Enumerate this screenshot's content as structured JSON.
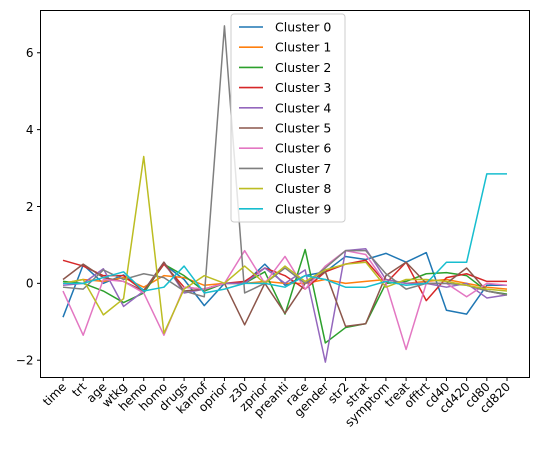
{
  "chart_data": {
    "type": "line",
    "categories": [
      "time",
      "trt",
      "age",
      "wtkg",
      "hemo",
      "homo",
      "drugs",
      "karnof",
      "oprior",
      "z30",
      "zprior",
      "preanti",
      "race",
      "gender",
      "str2",
      "strat",
      "symptom",
      "treat",
      "offtrt",
      "cd40",
      "cd420",
      "cd80",
      "cd820"
    ],
    "yticks": [
      -2,
      0,
      2,
      4,
      6
    ],
    "ylim": [
      -2.45,
      7.1
    ],
    "grid": false,
    "legend_position": "top-center",
    "series": [
      {
        "name": "Cluster 0",
        "color": "#1f77b4",
        "values": [
          -0.88,
          0.48,
          0.0,
          0.22,
          -0.18,
          0.5,
          0.1,
          -0.58,
          0.0,
          0.0,
          0.5,
          -0.05,
          0.2,
          0.3,
          0.7,
          0.62,
          0.78,
          0.55,
          0.8,
          -0.7,
          -0.8,
          -0.05,
          -0.05
        ]
      },
      {
        "name": "Cluster 1",
        "color": "#ff7f0e",
        "values": [
          0.0,
          0.1,
          0.05,
          0.15,
          -0.1,
          0.2,
          0.15,
          -0.05,
          0.0,
          0.0,
          0.05,
          0.0,
          0.0,
          0.1,
          0.0,
          0.05,
          0.1,
          0.0,
          0.05,
          0.1,
          0.0,
          -0.1,
          -0.15
        ]
      },
      {
        "name": "Cluster 2",
        "color": "#2ca02c",
        "values": [
          0.05,
          0.0,
          -0.2,
          -0.5,
          -0.25,
          0.5,
          0.2,
          -0.2,
          0.0,
          0.0,
          0.3,
          -0.8,
          0.88,
          -1.55,
          -1.15,
          -1.05,
          0.0,
          0.05,
          0.25,
          0.28,
          0.2,
          -0.2,
          -0.28
        ]
      },
      {
        "name": "Cluster 3",
        "color": "#d62728",
        "values": [
          0.6,
          0.45,
          0.2,
          0.2,
          -0.2,
          0.5,
          -0.1,
          -0.15,
          0.0,
          0.05,
          0.4,
          0.2,
          -0.15,
          0.3,
          0.5,
          0.6,
          0.0,
          0.55,
          -0.45,
          0.15,
          0.25,
          0.05,
          0.05
        ]
      },
      {
        "name": "Cluster 4",
        "color": "#9467bd",
        "values": [
          -0.05,
          0.0,
          0.38,
          -0.6,
          -0.2,
          0.55,
          -0.25,
          -0.15,
          0.0,
          0.0,
          0.4,
          0.0,
          0.35,
          -2.05,
          0.85,
          0.9,
          0.1,
          0.0,
          0.0,
          -0.1,
          0.0,
          -0.38,
          -0.3
        ]
      },
      {
        "name": "Cluster 5",
        "color": "#8c564b",
        "values": [
          0.1,
          0.5,
          0.15,
          0.05,
          -0.2,
          0.55,
          -0.2,
          -0.15,
          0.0,
          -1.08,
          0.0,
          -0.78,
          0.0,
          0.3,
          -1.12,
          -1.05,
          0.2,
          0.55,
          0.0,
          0.0,
          0.4,
          -0.2,
          -0.3
        ]
      },
      {
        "name": "Cluster 6",
        "color": "#e377c2",
        "values": [
          -0.2,
          -1.35,
          0.1,
          0.05,
          -0.25,
          -1.35,
          -0.1,
          -0.15,
          0.0,
          0.85,
          0.0,
          0.7,
          -0.15,
          0.45,
          0.85,
          0.75,
          0.0,
          -1.72,
          0.0,
          0.0,
          -0.35,
          0.0,
          -0.05
        ]
      },
      {
        "name": "Cluster 7",
        "color": "#7f7f7f",
        "values": [
          -0.1,
          -0.15,
          0.35,
          0.1,
          0.25,
          0.15,
          -0.2,
          -0.35,
          6.7,
          -0.25,
          0.0,
          0.4,
          0.0,
          0.4,
          0.85,
          0.85,
          0.25,
          -0.15,
          0.0,
          0.0,
          -0.05,
          -0.2,
          -0.3
        ]
      },
      {
        "name": "Cluster 8",
        "color": "#bcbd22",
        "values": [
          0.0,
          0.1,
          -0.82,
          -0.4,
          3.3,
          -1.3,
          -0.15,
          0.2,
          0.0,
          0.45,
          0.0,
          0.45,
          0.05,
          0.35,
          0.5,
          0.55,
          -0.1,
          0.1,
          0.1,
          0.05,
          -0.05,
          -0.15,
          -0.2
        ]
      },
      {
        "name": "Cluster 9",
        "color": "#17becf",
        "values": [
          0.0,
          0.0,
          0.15,
          0.3,
          -0.2,
          -0.1,
          0.45,
          -0.25,
          -0.15,
          0.0,
          0.0,
          -0.1,
          0.2,
          0.1,
          -0.1,
          -0.1,
          0.05,
          -0.05,
          0.0,
          0.55,
          0.55,
          2.85,
          2.85
        ]
      }
    ]
  }
}
